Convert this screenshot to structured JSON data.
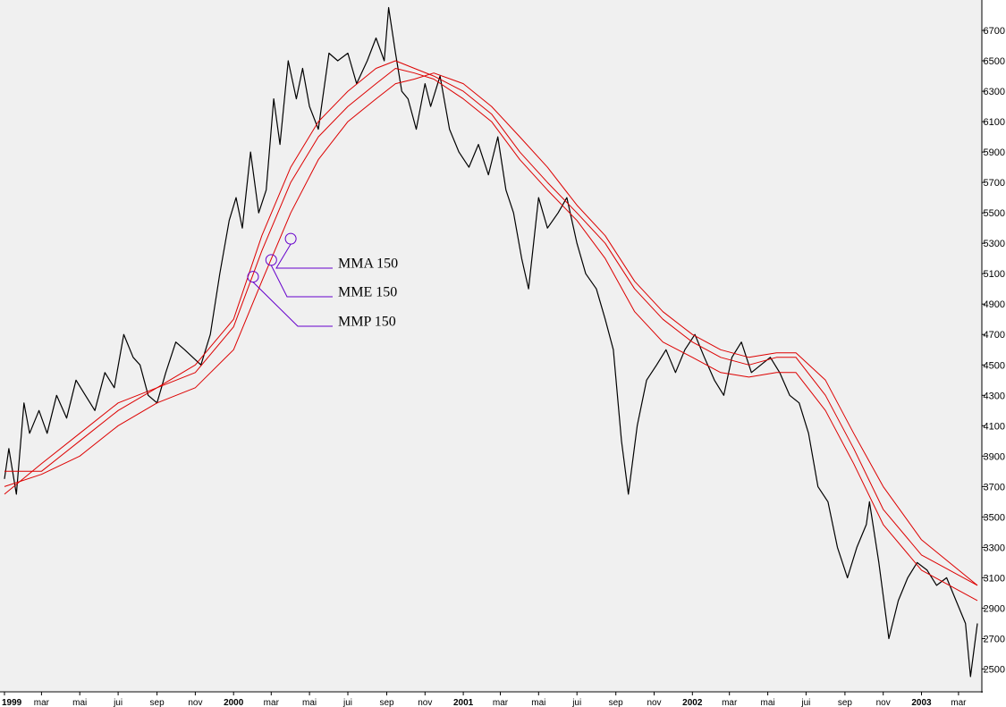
{
  "chart_data": {
    "type": "line",
    "title": "",
    "xlabel": "",
    "ylabel": "",
    "ylim": [
      2350,
      6900
    ],
    "xlim": [
      "1999-01-01",
      "2003-03-31"
    ],
    "grid": false,
    "y_ticks": [
      2500,
      2700,
      2900,
      3100,
      3300,
      3500,
      3700,
      3900,
      4100,
      4300,
      4500,
      4700,
      4900,
      5100,
      5300,
      5500,
      5700,
      5900,
      6100,
      6300,
      6500,
      6700
    ],
    "x_ticks": [
      {
        "label": "1999",
        "date": "1999-01-01",
        "year": true
      },
      {
        "label": "mar",
        "date": "1999-03-01"
      },
      {
        "label": "mai",
        "date": "1999-05-01"
      },
      {
        "label": "jui",
        "date": "1999-07-01"
      },
      {
        "label": "sep",
        "date": "1999-09-01"
      },
      {
        "label": "nov",
        "date": "1999-11-01"
      },
      {
        "label": "2000",
        "date": "2000-01-01",
        "year": true
      },
      {
        "label": "mar",
        "date": "2000-03-01"
      },
      {
        "label": "mai",
        "date": "2000-05-01"
      },
      {
        "label": "jui",
        "date": "2000-07-01"
      },
      {
        "label": "sep",
        "date": "2000-09-01"
      },
      {
        "label": "nov",
        "date": "2000-11-01"
      },
      {
        "label": "2001",
        "date": "2001-01-01",
        "year": true
      },
      {
        "label": "mar",
        "date": "2001-03-01"
      },
      {
        "label": "mai",
        "date": "2001-05-01"
      },
      {
        "label": "jui",
        "date": "2001-07-01"
      },
      {
        "label": "sep",
        "date": "2001-09-01"
      },
      {
        "label": "nov",
        "date": "2001-11-01"
      },
      {
        "label": "2002",
        "date": "2002-01-01",
        "year": true
      },
      {
        "label": "mar",
        "date": "2002-03-01"
      },
      {
        "label": "mai",
        "date": "2002-05-01"
      },
      {
        "label": "jui",
        "date": "2002-07-01"
      },
      {
        "label": "sep",
        "date": "2002-09-01"
      },
      {
        "label": "nov",
        "date": "2002-11-01"
      },
      {
        "label": "2003",
        "date": "2003-01-01",
        "year": true
      },
      {
        "label": "mar",
        "date": "2003-03-01"
      }
    ],
    "series": [
      {
        "color": "#000000",
        "x": [
          "1999-01-01",
          "1999-01-08",
          "1999-01-20",
          "1999-02-01",
          "1999-02-10",
          "1999-02-25",
          "1999-03-10",
          "1999-03-25",
          "1999-04-10",
          "1999-04-25",
          "1999-05-10",
          "1999-05-25",
          "1999-06-10",
          "1999-06-25",
          "1999-07-10",
          "1999-07-25",
          "1999-08-05",
          "1999-08-18",
          "1999-09-01",
          "1999-09-15",
          "1999-10-01",
          "1999-10-15",
          "1999-10-28",
          "1999-11-10",
          "1999-11-25",
          "1999-12-10",
          "1999-12-25",
          "2000-01-05",
          "2000-01-15",
          "2000-01-28",
          "2000-02-10",
          "2000-02-22",
          "2000-03-05",
          "2000-03-15",
          "2000-03-28",
          "2000-04-10",
          "2000-04-20",
          "2000-05-01",
          "2000-05-15",
          "2000-06-01",
          "2000-06-15",
          "2000-07-01",
          "2000-07-15",
          "2000-08-01",
          "2000-08-15",
          "2000-08-28",
          "2000-09-04",
          "2000-09-15",
          "2000-09-25",
          "2000-10-05",
          "2000-10-18",
          "2000-11-01",
          "2000-11-10",
          "2000-11-25",
          "2000-12-10",
          "2000-12-25",
          "2001-01-10",
          "2001-01-25",
          "2001-02-10",
          "2001-02-25",
          "2001-03-10",
          "2001-03-22",
          "2001-04-04",
          "2001-04-15",
          "2001-05-01",
          "2001-05-15",
          "2001-06-01",
          "2001-06-15",
          "2001-07-01",
          "2001-07-15",
          "2001-08-01",
          "2001-08-15",
          "2001-08-28",
          "2001-09-10",
          "2001-09-21",
          "2001-10-05",
          "2001-10-20",
          "2001-11-05",
          "2001-11-20",
          "2001-12-05",
          "2001-12-20",
          "2002-01-05",
          "2002-01-20",
          "2002-02-05",
          "2002-02-20",
          "2002-03-05",
          "2002-03-20",
          "2002-04-05",
          "2002-04-20",
          "2002-05-05",
          "2002-05-20",
          "2002-06-05",
          "2002-06-20",
          "2002-07-05",
          "2002-07-20",
          "2002-08-05",
          "2002-08-20",
          "2002-09-05",
          "2002-09-20",
          "2002-10-05",
          "2002-10-10",
          "2002-10-25",
          "2002-11-10",
          "2002-11-25",
          "2002-12-10",
          "2002-12-25",
          "2003-01-10",
          "2003-01-25",
          "2003-02-10",
          "2003-02-25",
          "2003-03-12",
          "2003-03-20",
          "2003-03-31"
        ],
        "values": [
          3750,
          3950,
          3650,
          4250,
          4050,
          4200,
          4050,
          4300,
          4150,
          4400,
          4300,
          4200,
          4450,
          4350,
          4700,
          4550,
          4500,
          4300,
          4250,
          4450,
          4650,
          4600,
          4550,
          4500,
          4700,
          5100,
          5450,
          5600,
          5400,
          5900,
          5500,
          5650,
          6250,
          5950,
          6500,
          6250,
          6450,
          6200,
          6050,
          6550,
          6500,
          6550,
          6350,
          6500,
          6650,
          6500,
          6850,
          6550,
          6300,
          6250,
          6050,
          6350,
          6200,
          6400,
          6050,
          5900,
          5800,
          5950,
          5750,
          6000,
          5650,
          5500,
          5200,
          5000,
          5600,
          5400,
          5500,
          5600,
          5300,
          5100,
          5000,
          4800,
          4600,
          4000,
          3650,
          4100,
          4400,
          4500,
          4600,
          4450,
          4600,
          4700,
          4550,
          4400,
          4300,
          4550,
          4650,
          4450,
          4500,
          4550,
          4450,
          4300,
          4250,
          4050,
          3700,
          3600,
          3300,
          3100,
          3300,
          3450,
          3600,
          3200,
          2700,
          2950,
          3100,
          3200,
          3150,
          3050,
          3100,
          2950,
          2800,
          2450,
          2800
        ]
      },
      {
        "color": "#dd0000",
        "x": [
          "1999-01-01",
          "1999-03-01",
          "1999-05-01",
          "1999-07-01",
          "1999-09-01",
          "1999-11-01",
          "2000-01-01",
          "2000-02-15",
          "2000-04-01",
          "2000-05-15",
          "2000-07-01",
          "2000-08-15",
          "2000-09-15",
          "2000-10-15",
          "2000-11-15",
          "2001-01-01",
          "2001-02-15",
          "2001-04-01",
          "2001-05-15",
          "2001-07-01",
          "2001-08-15",
          "2001-10-01",
          "2001-11-15",
          "2002-01-01",
          "2002-02-15",
          "2002-04-01",
          "2002-05-15",
          "2002-06-15",
          "2002-08-01",
          "2002-09-15",
          "2002-11-01",
          "2003-01-01",
          "2003-03-31"
        ],
        "values": [
          3650,
          3850,
          4050,
          4250,
          4350,
          4450,
          4750,
          5250,
          5700,
          6000,
          6200,
          6350,
          6450,
          6420,
          6380,
          6250,
          6100,
          5850,
          5650,
          5450,
          5200,
          4850,
          4650,
          4550,
          4450,
          4420,
          4450,
          4450,
          4200,
          3850,
          3450,
          3150,
          2950
        ]
      },
      {
        "color": "#dd0000",
        "x": [
          "1999-01-01",
          "1999-03-01",
          "1999-05-01",
          "1999-07-01",
          "1999-09-01",
          "1999-11-01",
          "2000-01-01",
          "2000-02-15",
          "2000-04-01",
          "2000-05-15",
          "2000-07-01",
          "2000-08-15",
          "2000-09-15",
          "2000-10-15",
          "2000-11-15",
          "2001-01-01",
          "2001-02-15",
          "2001-04-01",
          "2001-05-15",
          "2001-07-01",
          "2001-08-15",
          "2001-10-01",
          "2001-11-15",
          "2002-01-01",
          "2002-02-15",
          "2002-04-01",
          "2002-05-15",
          "2002-06-15",
          "2002-08-01",
          "2002-09-15",
          "2002-11-01",
          "2003-01-01",
          "2003-03-31"
        ],
        "values": [
          3800,
          3800,
          4000,
          4200,
          4350,
          4500,
          4800,
          5350,
          5800,
          6100,
          6300,
          6450,
          6500,
          6450,
          6400,
          6300,
          6150,
          5900,
          5700,
          5500,
          5300,
          5000,
          4800,
          4650,
          4550,
          4500,
          4550,
          4550,
          4300,
          3950,
          3550,
          3250,
          3050
        ]
      },
      {
        "color": "#dd0000",
        "x": [
          "1999-01-01",
          "1999-03-01",
          "1999-05-01",
          "1999-07-01",
          "1999-09-01",
          "1999-11-01",
          "2000-01-01",
          "2000-02-15",
          "2000-04-01",
          "2000-05-15",
          "2000-07-01",
          "2000-08-15",
          "2000-09-15",
          "2000-10-15",
          "2000-11-15",
          "2001-01-01",
          "2001-02-15",
          "2001-04-01",
          "2001-05-15",
          "2001-07-01",
          "2001-08-15",
          "2001-10-01",
          "2001-11-15",
          "2002-01-01",
          "2002-02-15",
          "2002-04-01",
          "2002-05-15",
          "2002-06-15",
          "2002-08-01",
          "2002-09-15",
          "2002-11-01",
          "2003-01-01",
          "2003-03-31"
        ],
        "values": [
          3700,
          3780,
          3900,
          4100,
          4250,
          4350,
          4600,
          5050,
          5500,
          5850,
          6100,
          6250,
          6350,
          6380,
          6420,
          6350,
          6200,
          6000,
          5800,
          5550,
          5350,
          5050,
          4850,
          4700,
          4600,
          4550,
          4580,
          4580,
          4400,
          4050,
          3700,
          3350,
          3050
        ]
      }
    ],
    "annotations": [
      {
        "label": "MMA 150",
        "target_date": "2000-04-01",
        "target_value": 5330
      },
      {
        "label": "MME 150",
        "target_date": "2000-03-01",
        "target_value": 5190
      },
      {
        "label": "MMP 150",
        "target_date": "2000-02-01",
        "target_value": 5080
      }
    ]
  },
  "colors": {
    "background": "#f0f0f0",
    "price_line": "#000000",
    "average_lines": "#dd0000",
    "annotation": "#6600cc"
  }
}
